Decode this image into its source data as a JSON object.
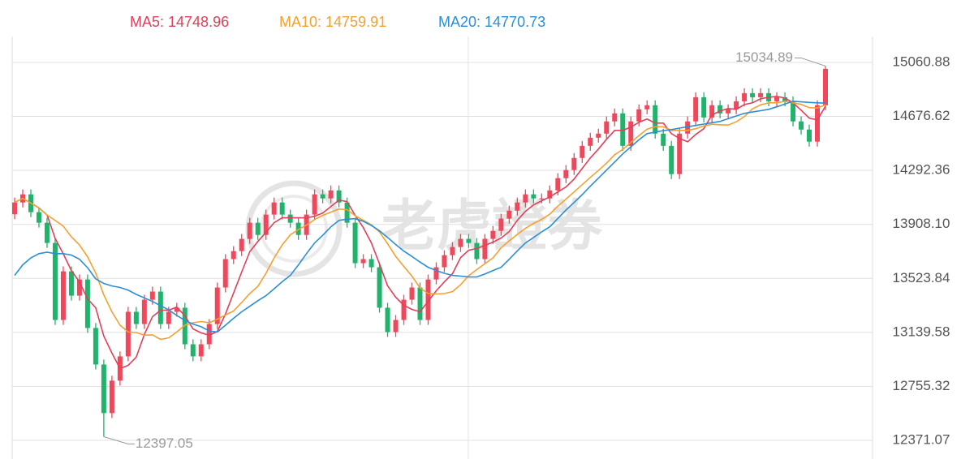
{
  "chart_data": {
    "type": "candlestick",
    "watermark": "老虎證券",
    "up_color": "#f0475a",
    "down_color": "#1fb36b",
    "ylim": [
      12238.5,
      15245.3
    ],
    "yticks": [
      12371.07,
      12755.32,
      13139.58,
      13523.84,
      {
        "value": 13908.1,
        "label": "13908.10"
      },
      14292.36,
      14676.62,
      15060.88
    ],
    "grid": true,
    "open": [
      13980,
      14064,
      14122,
      13995,
      13920,
      13776,
      13228,
      13574,
      13401,
      13516,
      13171,
      12911,
      12565,
      12796,
      12969,
      13286,
      13199,
      13372,
      13430,
      13199,
      13286,
      13315,
      13055,
      12969,
      13055,
      13199,
      13459,
      13661,
      13718,
      13805,
      13920,
      13833,
      13978,
      14064,
      13978,
      13920,
      13833,
      13978,
      14122,
      14093,
      14150,
      14064,
      13920,
      13632,
      13661,
      13603,
      13315,
      13142,
      13228,
      13372,
      13459,
      13228,
      13516,
      13603,
      13689,
      13747,
      13805,
      13776,
      13661,
      13805,
      13862,
      13949,
      14006,
      14064,
      14122,
      14093,
      14093,
      14150,
      14237,
      14295,
      14381,
      14467,
      14525,
      14554,
      14641,
      14698,
      14467,
      14641,
      14727,
      14756,
      14554,
      14467,
      14266,
      14554,
      14641,
      14813,
      14669,
      14756,
      14698,
      14727,
      14784,
      14842,
      14813,
      14842,
      14784,
      14813,
      14784,
      14641,
      14583,
      14497,
      14756
    ],
    "high": [
      14099,
      14157,
      14157,
      14030,
      13955,
      13811,
      13609,
      13609,
      13551,
      13551,
      13206,
      12946,
      12831,
      13004,
      13321,
      13321,
      13407,
      13465,
      13465,
      13321,
      13350,
      13350,
      13090,
      13090,
      13234,
      13494,
      13696,
      13753,
      13840,
      13955,
      13955,
      14013,
      14099,
      14099,
      14013,
      13955,
      14013,
      14157,
      14157,
      14185,
      14185,
      14099,
      13955,
      13696,
      13696,
      13638,
      13350,
      13263,
      13407,
      13494,
      13494,
      13551,
      13638,
      13724,
      13782,
      13840,
      13840,
      13811,
      13840,
      13897,
      13984,
      14041,
      14099,
      14157,
      14157,
      14128,
      14185,
      14272,
      14330,
      14416,
      14502,
      14560,
      14589,
      14676,
      14733,
      14733,
      14676,
      14762,
      14791,
      14791,
      14589,
      14502,
      14589,
      14676,
      14848,
      14848,
      14791,
      14791,
      14762,
      14819,
      14877,
      14877,
      14877,
      14877,
      14848,
      14848,
      14819,
      14676,
      14618,
      14791,
      15034.89
    ],
    "low": [
      13945,
      14029,
      13960,
      13885,
      13741,
      13193,
      13193,
      13366,
      13366,
      13136,
      12876,
      12397.05,
      12530,
      12761,
      12934,
      13164,
      13164,
      13337,
      13164,
      13164,
      13251,
      13020,
      12934,
      12934,
      13020,
      13164,
      13424,
      13626,
      13683,
      13770,
      13798,
      13798,
      13943,
      13943,
      13885,
      13798,
      13798,
      13943,
      14058,
      14058,
      14029,
      13885,
      13597,
      13597,
      13568,
      13280,
      13107,
      13107,
      13193,
      13337,
      13193,
      13193,
      13481,
      13568,
      13654,
      13712,
      13741,
      13626,
      13626,
      13770,
      13827,
      13914,
      13971,
      14029,
      14058,
      14058,
      14058,
      14115,
      14202,
      14260,
      14346,
      14432,
      14490,
      14519,
      14606,
      14432,
      14432,
      14606,
      14692,
      14519,
      14432,
      14231,
      14231,
      14519,
      14606,
      14634,
      14634,
      14663,
      14663,
      14692,
      14749,
      14778,
      14778,
      14749,
      14749,
      14749,
      14606,
      14548,
      14462,
      14462,
      14721
    ],
    "close": [
      14064,
      14122,
      13995,
      13920,
      13776,
      13228,
      13574,
      13401,
      13516,
      13171,
      12911,
      12565,
      12796,
      12969,
      13286,
      13199,
      13372,
      13430,
      13199,
      13286,
      13315,
      13055,
      12969,
      13055,
      13199,
      13459,
      13661,
      13718,
      13805,
      13920,
      13833,
      13978,
      14064,
      13978,
      13920,
      13833,
      13978,
      14122,
      14093,
      14150,
      14064,
      13920,
      13632,
      13661,
      13603,
      13315,
      13142,
      13228,
      13372,
      13459,
      13228,
      13516,
      13603,
      13689,
      13747,
      13805,
      13776,
      13661,
      13805,
      13862,
      13949,
      14006,
      14064,
      14122,
      14093,
      14093,
      14150,
      14237,
      14295,
      14381,
      14467,
      14525,
      14554,
      14641,
      14698,
      14467,
      14641,
      14727,
      14756,
      14554,
      14467,
      14266,
      14554,
      14641,
      14813,
      14669,
      14756,
      14698,
      14727,
      14784,
      14842,
      14813,
      14842,
      14784,
      14813,
      14784,
      14641,
      14583,
      14497,
      14756,
      15015
    ],
    "series": [
      {
        "name": "MA5",
        "legend": "MA5: 14748.96",
        "color": "#e0405a",
        "values": [
          14064,
          14093,
          14060,
          14025,
          13975,
          13808,
          13699,
          13580,
          13499,
          13378,
          13315,
          13113,
          12992,
          12882,
          12905,
          12963,
          13124,
          13251,
          13297,
          13297,
          13320,
          13257,
          13165,
          13136,
          13119,
          13147,
          13269,
          13418,
          13568,
          13713,
          13787,
          13851,
          13920,
          13955,
          13955,
          13955,
          13955,
          13966,
          13989,
          14035,
          14081,
          14070,
          13972,
          13885,
          13776,
          13626,
          13471,
          13390,
          13332,
          13303,
          13286,
          13361,
          13436,
          13499,
          13557,
          13672,
          13724,
          13736,
          13759,
          13782,
          13811,
          13857,
          13937,
          14001,
          14047,
          14076,
          14104,
          14139,
          14174,
          14231,
          14306,
          14381,
          14444,
          14514,
          14577,
          14577,
          14600,
          14635,
          14658,
          14629,
          14629,
          14554,
          14519,
          14496,
          14548,
          14589,
          14687,
          14715,
          14733,
          14727,
          14761,
          14773,
          14802,
          14813,
          14819,
          14807,
          14773,
          14721,
          14664,
          14652,
          14748.96
        ]
      },
      {
        "name": "MA10",
        "legend": "MA10: 14759.91",
        "color": "#f5a031",
        "values": [
          14064,
          14093,
          14060,
          14025,
          13975,
          13936,
          13896,
          13820,
          13762,
          13677,
          13562,
          13406,
          13286,
          13191,
          13142,
          13139,
          13119,
          13122,
          13090,
          13101,
          13142,
          13191,
          13208,
          13217,
          13208,
          13234,
          13263,
          13292,
          13352,
          13416,
          13467,
          13560,
          13669,
          13762,
          13834,
          13871,
          13903,
          13943,
          13972,
          13995,
          14018,
          14013,
          13969,
          13937,
          13906,
          13854,
          13771,
          13681,
          13609,
          13540,
          13456,
          13416,
          13413,
          13416,
          13430,
          13479,
          13543,
          13586,
          13629,
          13670,
          13742,
          13791,
          13837,
          13880,
          13915,
          13944,
          13981,
          14038,
          14088,
          14139,
          14191,
          14243,
          14292,
          14344,
          14404,
          14442,
          14491,
          14540,
          14586,
          14603,
          14603,
          14577,
          14577,
          14577,
          14589,
          14609,
          14621,
          14617,
          14615,
          14638,
          14675,
          14730,
          14759,
          14773,
          14773,
          14784,
          14773,
          14762,
          14739,
          14736,
          14759.91
        ]
      },
      {
        "name": "MA20",
        "legend": "MA20: 14770.73",
        "color": "#2a8fd6",
        "values": [
          13545,
          13620,
          13670,
          13700,
          13710,
          13700,
          13700,
          13690,
          13660,
          13600,
          13520,
          13488,
          13470,
          13459,
          13440,
          13410,
          13385,
          13360,
          13330,
          13300,
          13260,
          13225,
          13199,
          13180,
          13150,
          13142,
          13190,
          13240,
          13286,
          13325,
          13365,
          13401,
          13450,
          13500,
          13545,
          13620,
          13700,
          13776,
          13830,
          13890,
          13937,
          13945,
          13949,
          13930,
          13900,
          13862,
          13815,
          13765,
          13718,
          13680,
          13640,
          13603,
          13580,
          13560,
          13545,
          13540,
          13535,
          13534,
          13555,
          13580,
          13603,
          13660,
          13720,
          13776,
          13815,
          13855,
          13891,
          13950,
          14010,
          14064,
          14120,
          14180,
          14237,
          14295,
          14352,
          14410,
          14460,
          14510,
          14554,
          14565,
          14575,
          14583,
          14593,
          14603,
          14612,
          14622,
          14632,
          14641,
          14660,
          14680,
          14698,
          14708,
          14717,
          14727,
          14745,
          14765,
          14784,
          14780,
          14776,
          14773,
          14770.73
        ]
      }
    ]
  }
}
